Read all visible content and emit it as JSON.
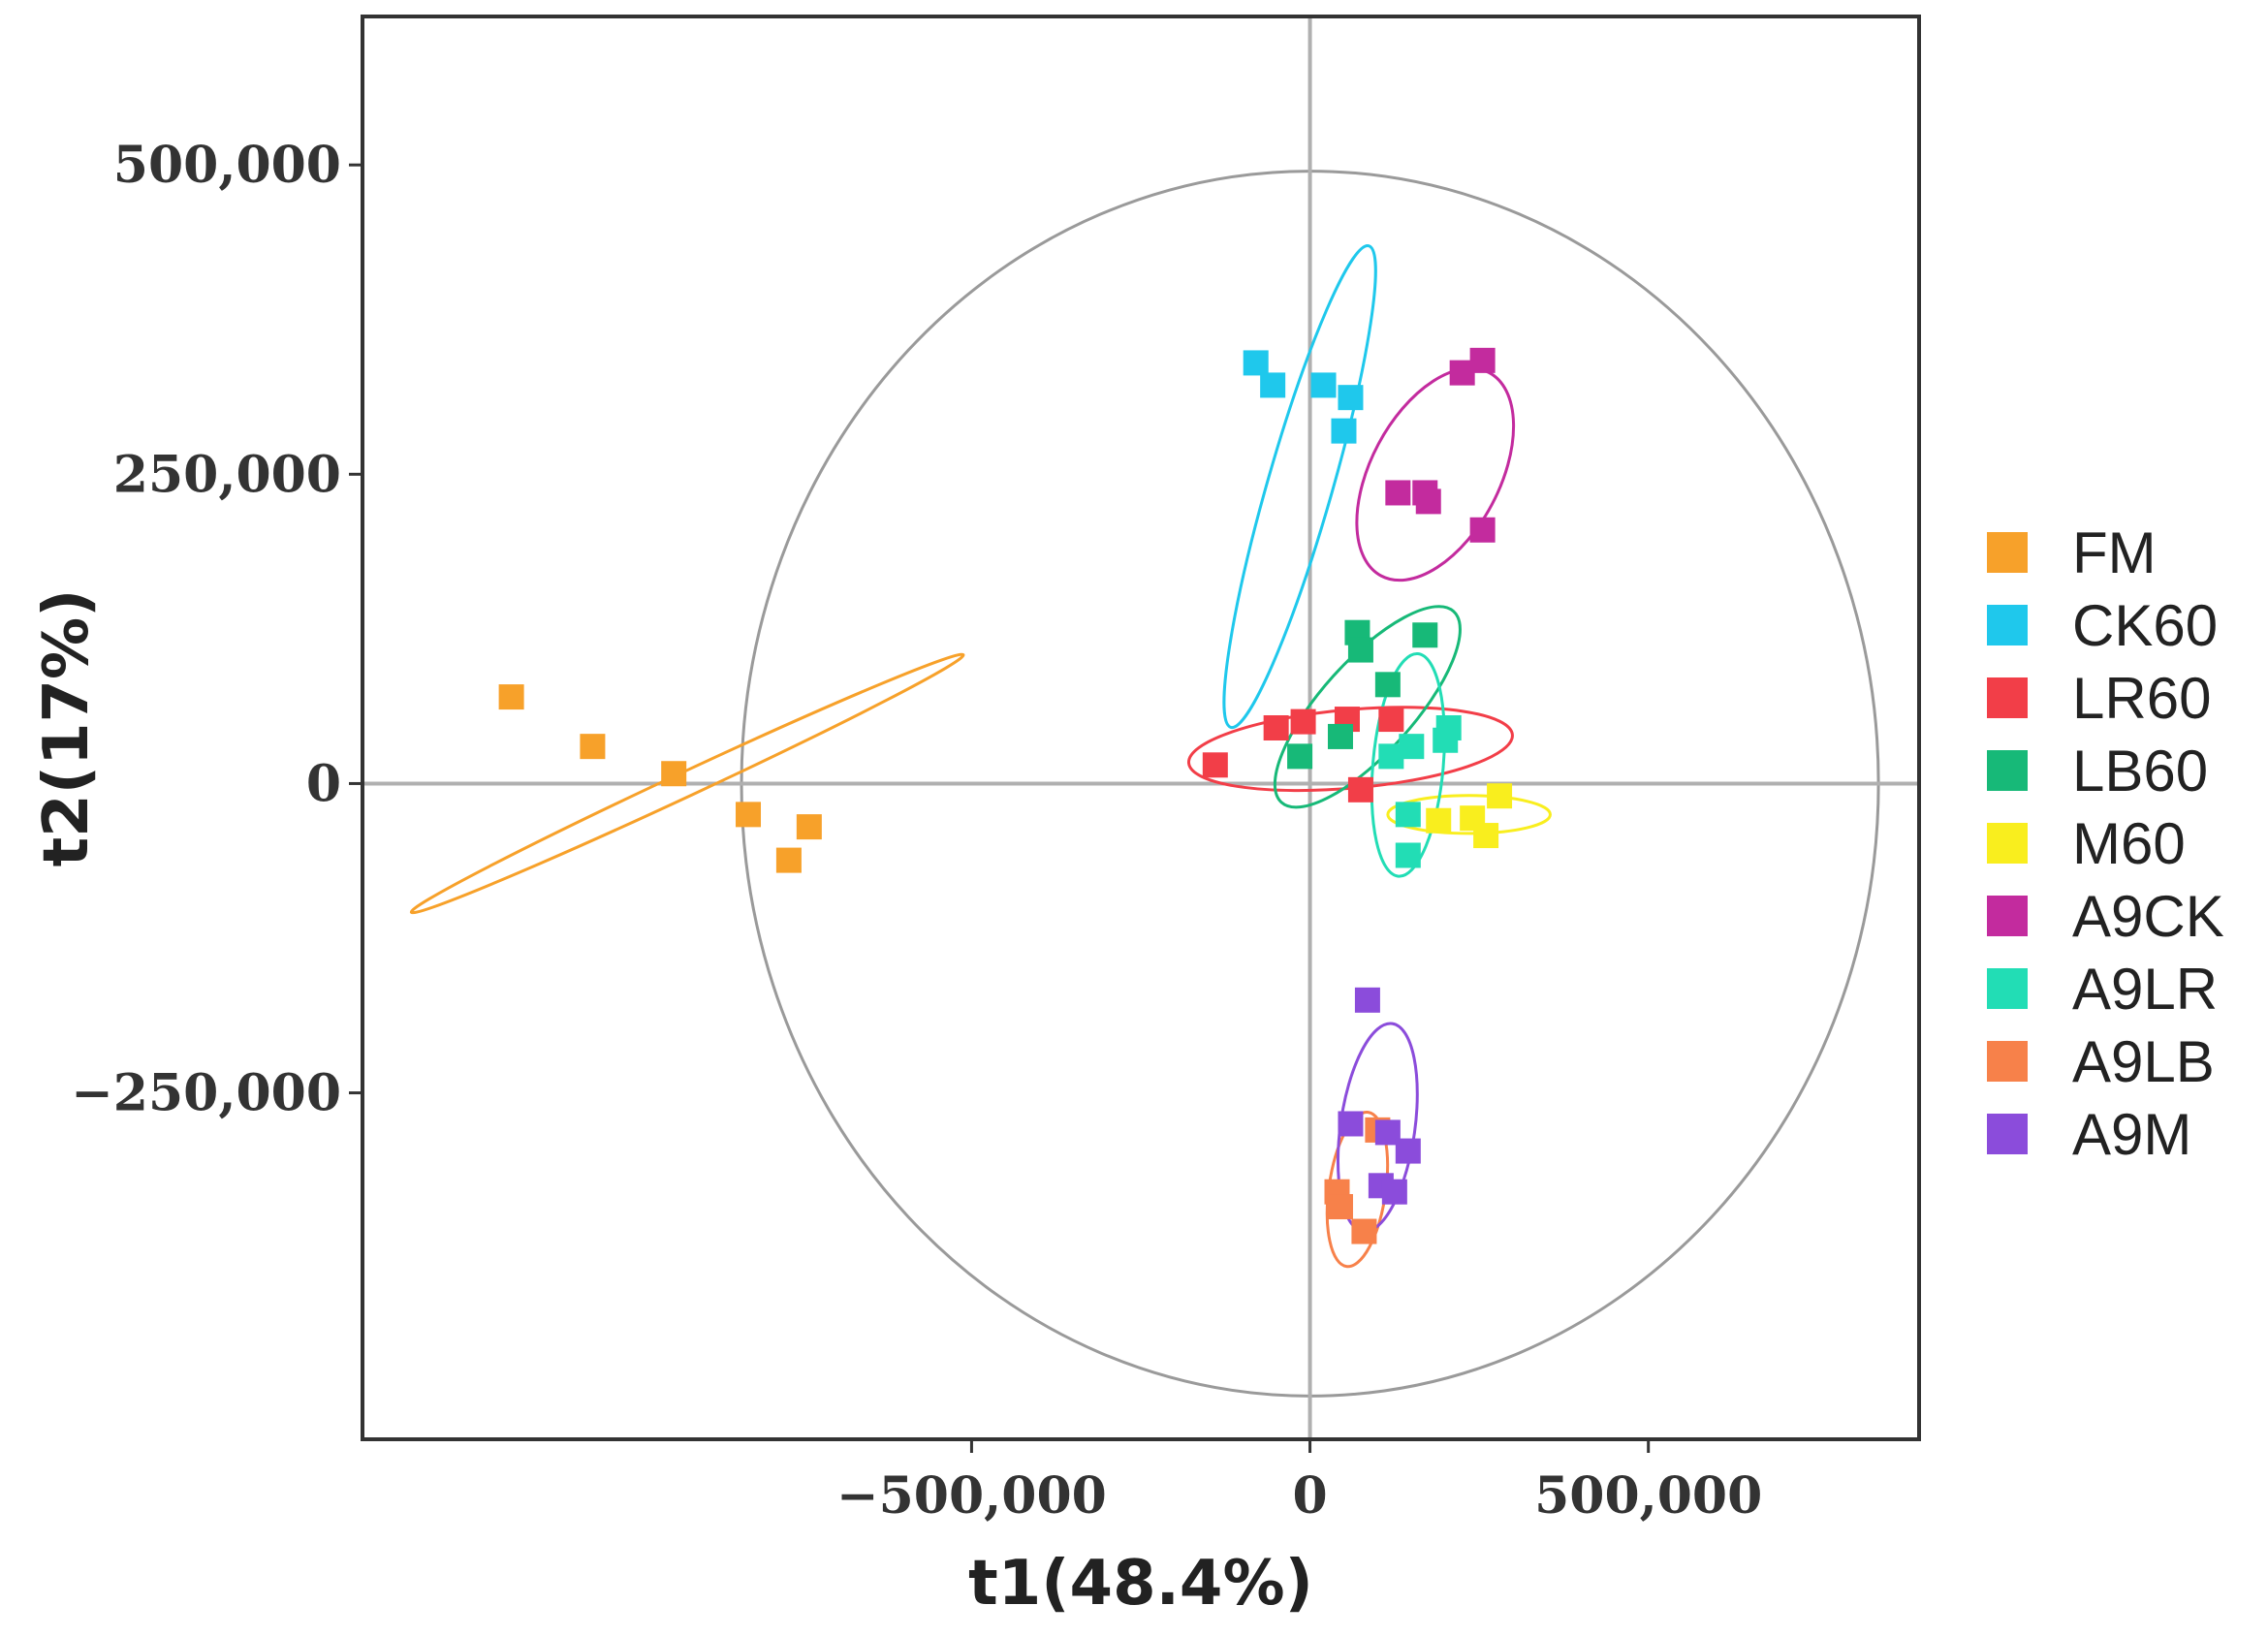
{
  "chart_data": {
    "type": "scatter",
    "title": "",
    "xlabel": "t1(48.4%)",
    "ylabel": "t2(17%)",
    "xlim": [
      -1400000,
      900000
    ],
    "ylim": [
      -530000,
      620000
    ],
    "x_ticks": [
      {
        "value": -500000,
        "label": "−500,000"
      },
      {
        "value": 0,
        "label": "0"
      },
      {
        "value": 500000,
        "label": "500,000"
      }
    ],
    "y_ticks": [
      {
        "value": 500000,
        "label": "500,000"
      },
      {
        "value": 250000,
        "label": "250,000"
      },
      {
        "value": 0,
        "label": "0"
      },
      {
        "value": -250000,
        "label": "−250,000"
      }
    ],
    "hotelling_circle": {
      "radius_x": 840000,
      "radius_y": 495000
    },
    "legend_position": "right",
    "series": [
      {
        "name": "FM",
        "color": "#F7A12A",
        "points": [
          [
            -1180000,
            70000
          ],
          [
            -1060000,
            30000
          ],
          [
            -940000,
            8000
          ],
          [
            -830000,
            -25000
          ],
          [
            -740000,
            -35000
          ],
          [
            -770000,
            -62000
          ]
        ],
        "ellipse": {
          "cx": -920000,
          "cy": 0,
          "rx": 450000,
          "ry": 18000,
          "angle_deg": 25
        }
      },
      {
        "name": "CK60",
        "color": "#1FC8EC",
        "points": [
          [
            -80000,
            340000
          ],
          [
            -55000,
            322000
          ],
          [
            20000,
            322000
          ],
          [
            60000,
            312000
          ],
          [
            50000,
            285000
          ]
        ],
        "ellipse": {
          "cx": -15000,
          "cy": 240000,
          "rx": 370000,
          "ry": 48000,
          "angle_deg": 74
        }
      },
      {
        "name": "LR60",
        "color": "#F23E48",
        "points": [
          [
            -140000,
            15000
          ],
          [
            -50000,
            45000
          ],
          [
            -10000,
            50000
          ],
          [
            55000,
            52000
          ],
          [
            120000,
            52000
          ],
          [
            75000,
            -5000
          ]
        ],
        "ellipse": {
          "cx": 60000,
          "cy": 28000,
          "rx": 240000,
          "ry": 58000,
          "angle_deg": 5
        }
      },
      {
        "name": "LB60",
        "color": "#17B978",
        "points": [
          [
            70000,
            122000
          ],
          [
            75000,
            108000
          ],
          [
            170000,
            120000
          ],
          [
            115000,
            80000
          ],
          [
            45000,
            38000
          ],
          [
            -15000,
            22000
          ]
        ],
        "ellipse": {
          "cx": 85000,
          "cy": 62000,
          "rx": 190000,
          "ry": 68000,
          "angle_deg": 48
        }
      },
      {
        "name": "M60",
        "color": "#F9EE1E",
        "points": [
          [
            280000,
            -10000
          ],
          [
            240000,
            -28000
          ],
          [
            190000,
            -30000
          ],
          [
            260000,
            -42000
          ]
        ],
        "ellipse": {
          "cx": 235000,
          "cy": -25000,
          "rx": 120000,
          "ry": 28000,
          "angle_deg": 0
        }
      },
      {
        "name": "A9CK",
        "color": "#C32B9E",
        "points": [
          [
            255000,
            342000
          ],
          [
            225000,
            332000
          ],
          [
            130000,
            235000
          ],
          [
            170000,
            235000
          ],
          [
            175000,
            228000
          ],
          [
            255000,
            205000
          ]
        ],
        "ellipse": {
          "cx": 185000,
          "cy": 250000,
          "rx": 170000,
          "ry": 95000,
          "angle_deg": 62
        }
      },
      {
        "name": "A9LR",
        "color": "#22DDB5",
        "points": [
          [
            205000,
            45000
          ],
          [
            200000,
            35000
          ],
          [
            150000,
            30000
          ],
          [
            120000,
            22000
          ],
          [
            145000,
            -25000
          ],
          [
            145000,
            -58000
          ]
        ],
        "ellipse": {
          "cx": 145000,
          "cy": 15000,
          "rx": 165000,
          "ry": 52000,
          "angle_deg": 85
        }
      },
      {
        "name": "A9LB",
        "color": "#F7814A",
        "points": [
          [
            100000,
            -280000
          ],
          [
            40000,
            -330000
          ],
          [
            45000,
            -342000
          ],
          [
            80000,
            -362000
          ]
        ],
        "ellipse": {
          "cx": 70000,
          "cy": -328000,
          "rx": 115000,
          "ry": 42000,
          "angle_deg": 82
        }
      },
      {
        "name": "A9M",
        "color": "#8B4CDB",
        "points": [
          [
            85000,
            -175000
          ],
          [
            60000,
            -275000
          ],
          [
            115000,
            -282000
          ],
          [
            145000,
            -297000
          ],
          [
            105000,
            -325000
          ],
          [
            125000,
            -330000
          ]
        ],
        "ellipse": {
          "cx": 100000,
          "cy": -278000,
          "rx": 155000,
          "ry": 55000,
          "angle_deg": 82
        }
      }
    ]
  }
}
